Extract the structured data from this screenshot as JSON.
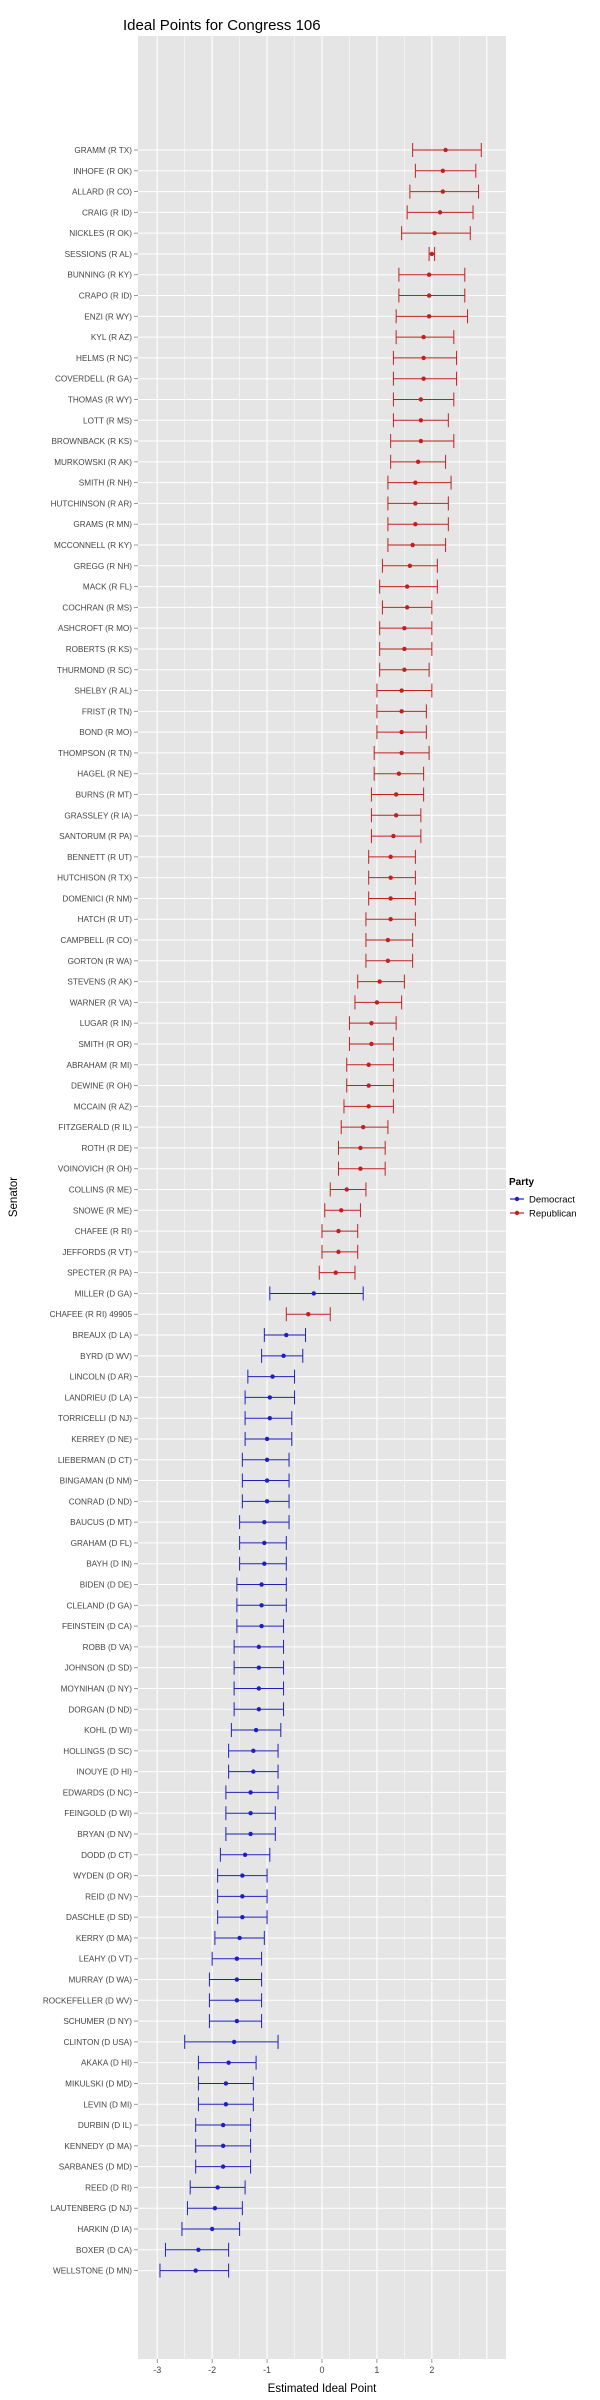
{
  "chart_data": {
    "type": "scatter",
    "title": "Ideal Points for Congress 106",
    "xlabel": "Estimated Ideal Point",
    "ylabel": "Senator",
    "xlim": [
      -3.35,
      3.35
    ],
    "xticks": [
      "-3",
      "-2",
      "-1",
      "0",
      "1",
      "2"
    ],
    "grid": true,
    "legend": {
      "title": "Party",
      "position": "right",
      "entries": [
        {
          "label": "Democract",
          "color": "#1f1fbf"
        },
        {
          "label": "Republican",
          "color": "#c12020"
        }
      ]
    },
    "points": [
      {
        "name": "GRAMM (R TX)",
        "party": "R",
        "x": 2.25,
        "lo": 1.65,
        "hi": 2.9
      },
      {
        "name": "INHOFE (R OK)",
        "party": "R",
        "x": 2.2,
        "lo": 1.7,
        "hi": 2.8
      },
      {
        "name": "ALLARD (R CO)",
        "party": "R",
        "x": 2.2,
        "lo": 1.6,
        "hi": 2.85
      },
      {
        "name": "CRAIG (R ID)",
        "party": "R",
        "x": 2.15,
        "lo": 1.55,
        "hi": 2.75
      },
      {
        "name": "NICKLES (R OK)",
        "party": "R",
        "x": 2.05,
        "lo": 1.45,
        "hi": 2.7
      },
      {
        "name": "SESSIONS (R AL)",
        "party": "R",
        "x": 2.0,
        "lo": 1.95,
        "hi": 2.05
      },
      {
        "name": "BUNNING (R KY)",
        "party": "R",
        "x": 1.95,
        "lo": 1.4,
        "hi": 2.6
      },
      {
        "name": "CRAPO (R ID)",
        "party": "R",
        "x": 1.95,
        "lo": 1.4,
        "hi": 2.6
      },
      {
        "name": "ENZI (R WY)",
        "party": "R",
        "x": 1.95,
        "lo": 1.35,
        "hi": 2.65
      },
      {
        "name": "KYL (R AZ)",
        "party": "R",
        "x": 1.85,
        "lo": 1.35,
        "hi": 2.4
      },
      {
        "name": "HELMS (R NC)",
        "party": "R",
        "x": 1.85,
        "lo": 1.3,
        "hi": 2.45
      },
      {
        "name": "COVERDELL (R GA)",
        "party": "R",
        "x": 1.85,
        "lo": 1.3,
        "hi": 2.45
      },
      {
        "name": "THOMAS (R WY)",
        "party": "R",
        "x": 1.8,
        "lo": 1.3,
        "hi": 2.4
      },
      {
        "name": "LOTT (R MS)",
        "party": "R",
        "x": 1.8,
        "lo": 1.3,
        "hi": 2.3
      },
      {
        "name": "BROWNBACK (R KS)",
        "party": "R",
        "x": 1.8,
        "lo": 1.25,
        "hi": 2.4
      },
      {
        "name": "MURKOWSKI (R AK)",
        "party": "R",
        "x": 1.75,
        "lo": 1.25,
        "hi": 2.25
      },
      {
        "name": "SMITH (R NH)",
        "party": "R",
        "x": 1.7,
        "lo": 1.2,
        "hi": 2.35
      },
      {
        "name": "HUTCHINSON (R AR)",
        "party": "R",
        "x": 1.7,
        "lo": 1.2,
        "hi": 2.3
      },
      {
        "name": "GRAMS (R MN)",
        "party": "R",
        "x": 1.7,
        "lo": 1.2,
        "hi": 2.3
      },
      {
        "name": "MCCONNELL (R KY)",
        "party": "R",
        "x": 1.65,
        "lo": 1.2,
        "hi": 2.25
      },
      {
        "name": "GREGG (R NH)",
        "party": "R",
        "x": 1.6,
        "lo": 1.1,
        "hi": 2.1
      },
      {
        "name": "MACK (R FL)",
        "party": "R",
        "x": 1.55,
        "lo": 1.05,
        "hi": 2.1
      },
      {
        "name": "COCHRAN (R MS)",
        "party": "R",
        "x": 1.55,
        "lo": 1.1,
        "hi": 2.0
      },
      {
        "name": "ASHCROFT (R MO)",
        "party": "R",
        "x": 1.5,
        "lo": 1.05,
        "hi": 2.0
      },
      {
        "name": "ROBERTS (R KS)",
        "party": "R",
        "x": 1.5,
        "lo": 1.05,
        "hi": 2.0
      },
      {
        "name": "THURMOND (R SC)",
        "party": "R",
        "x": 1.5,
        "lo": 1.05,
        "hi": 1.95
      },
      {
        "name": "SHELBY (R AL)",
        "party": "R",
        "x": 1.45,
        "lo": 1.0,
        "hi": 2.0
      },
      {
        "name": "FRIST (R TN)",
        "party": "R",
        "x": 1.45,
        "lo": 1.0,
        "hi": 1.9
      },
      {
        "name": "BOND (R MO)",
        "party": "R",
        "x": 1.45,
        "lo": 1.0,
        "hi": 1.9
      },
      {
        "name": "THOMPSON (R TN)",
        "party": "R",
        "x": 1.45,
        "lo": 0.95,
        "hi": 1.95
      },
      {
        "name": "HAGEL (R NE)",
        "party": "R",
        "x": 1.4,
        "lo": 0.95,
        "hi": 1.85
      },
      {
        "name": "BURNS (R MT)",
        "party": "R",
        "x": 1.35,
        "lo": 0.9,
        "hi": 1.85
      },
      {
        "name": "GRASSLEY (R IA)",
        "party": "R",
        "x": 1.35,
        "lo": 0.9,
        "hi": 1.8
      },
      {
        "name": "SANTORUM (R PA)",
        "party": "R",
        "x": 1.3,
        "lo": 0.9,
        "hi": 1.8
      },
      {
        "name": "BENNETT (R UT)",
        "party": "R",
        "x": 1.25,
        "lo": 0.85,
        "hi": 1.7
      },
      {
        "name": "HUTCHISON (R TX)",
        "party": "R",
        "x": 1.25,
        "lo": 0.85,
        "hi": 1.7
      },
      {
        "name": "DOMENICI (R NM)",
        "party": "R",
        "x": 1.25,
        "lo": 0.85,
        "hi": 1.7
      },
      {
        "name": "HATCH (R UT)",
        "party": "R",
        "x": 1.25,
        "lo": 0.8,
        "hi": 1.7
      },
      {
        "name": "CAMPBELL (R CO)",
        "party": "R",
        "x": 1.2,
        "lo": 0.8,
        "hi": 1.65
      },
      {
        "name": "GORTON (R WA)",
        "party": "R",
        "x": 1.2,
        "lo": 0.8,
        "hi": 1.65
      },
      {
        "name": "STEVENS (R AK)",
        "party": "R",
        "x": 1.05,
        "lo": 0.65,
        "hi": 1.5
      },
      {
        "name": "WARNER (R VA)",
        "party": "R",
        "x": 1.0,
        "lo": 0.6,
        "hi": 1.45
      },
      {
        "name": "LUGAR (R IN)",
        "party": "R",
        "x": 0.9,
        "lo": 0.5,
        "hi": 1.35
      },
      {
        "name": "SMITH (R OR)",
        "party": "R",
        "x": 0.9,
        "lo": 0.5,
        "hi": 1.3
      },
      {
        "name": "ABRAHAM (R MI)",
        "party": "R",
        "x": 0.85,
        "lo": 0.45,
        "hi": 1.3
      },
      {
        "name": "DEWINE (R OH)",
        "party": "R",
        "x": 0.85,
        "lo": 0.45,
        "hi": 1.3
      },
      {
        "name": "MCCAIN (R AZ)",
        "party": "R",
        "x": 0.85,
        "lo": 0.4,
        "hi": 1.3
      },
      {
        "name": "FITZGERALD (R IL)",
        "party": "R",
        "x": 0.75,
        "lo": 0.35,
        "hi": 1.2
      },
      {
        "name": "ROTH (R DE)",
        "party": "R",
        "x": 0.7,
        "lo": 0.3,
        "hi": 1.15
      },
      {
        "name": "VOINOVICH (R OH)",
        "party": "R",
        "x": 0.7,
        "lo": 0.3,
        "hi": 1.15
      },
      {
        "name": "COLLINS (R ME)",
        "party": "R",
        "x": 0.45,
        "lo": 0.15,
        "hi": 0.8
      },
      {
        "name": "SNOWE (R ME)",
        "party": "R",
        "x": 0.35,
        "lo": 0.05,
        "hi": 0.7
      },
      {
        "name": "CHAFEE (R RI)",
        "party": "R",
        "x": 0.3,
        "lo": 0.0,
        "hi": 0.65
      },
      {
        "name": "JEFFORDS (R VT)",
        "party": "R",
        "x": 0.3,
        "lo": 0.0,
        "hi": 0.65
      },
      {
        "name": "SPECTER (R PA)",
        "party": "R",
        "x": 0.25,
        "lo": -0.05,
        "hi": 0.6
      },
      {
        "name": "MILLER (D GA)",
        "party": "D",
        "x": -0.15,
        "lo": -0.95,
        "hi": 0.75
      },
      {
        "name": "CHAFEE (R RI) 49905",
        "party": "R",
        "x": -0.25,
        "lo": -0.65,
        "hi": 0.15
      },
      {
        "name": "BREAUX (D LA)",
        "party": "D",
        "x": -0.65,
        "lo": -1.05,
        "hi": -0.3
      },
      {
        "name": "BYRD (D WV)",
        "party": "D",
        "x": -0.7,
        "lo": -1.1,
        "hi": -0.35
      },
      {
        "name": "LINCOLN (D AR)",
        "party": "D",
        "x": -0.9,
        "lo": -1.35,
        "hi": -0.5
      },
      {
        "name": "LANDRIEU (D LA)",
        "party": "D",
        "x": -0.95,
        "lo": -1.4,
        "hi": -0.5
      },
      {
        "name": "TORRICELLI (D NJ)",
        "party": "D",
        "x": -0.95,
        "lo": -1.4,
        "hi": -0.55
      },
      {
        "name": "KERREY (D NE)",
        "party": "D",
        "x": -1.0,
        "lo": -1.4,
        "hi": -0.55
      },
      {
        "name": "LIEBERMAN (D CT)",
        "party": "D",
        "x": -1.0,
        "lo": -1.45,
        "hi": -0.6
      },
      {
        "name": "BINGAMAN (D NM)",
        "party": "D",
        "x": -1.0,
        "lo": -1.45,
        "hi": -0.6
      },
      {
        "name": "CONRAD (D ND)",
        "party": "D",
        "x": -1.0,
        "lo": -1.45,
        "hi": -0.6
      },
      {
        "name": "BAUCUS (D MT)",
        "party": "D",
        "x": -1.05,
        "lo": -1.5,
        "hi": -0.6
      },
      {
        "name": "GRAHAM (D FL)",
        "party": "D",
        "x": -1.05,
        "lo": -1.5,
        "hi": -0.65
      },
      {
        "name": "BAYH (D IN)",
        "party": "D",
        "x": -1.05,
        "lo": -1.5,
        "hi": -0.65
      },
      {
        "name": "BIDEN (D DE)",
        "party": "D",
        "x": -1.1,
        "lo": -1.55,
        "hi": -0.65
      },
      {
        "name": "CLELAND (D GA)",
        "party": "D",
        "x": -1.1,
        "lo": -1.55,
        "hi": -0.65
      },
      {
        "name": "FEINSTEIN (D CA)",
        "party": "D",
        "x": -1.1,
        "lo": -1.55,
        "hi": -0.7
      },
      {
        "name": "ROBB (D VA)",
        "party": "D",
        "x": -1.15,
        "lo": -1.6,
        "hi": -0.7
      },
      {
        "name": "JOHNSON (D SD)",
        "party": "D",
        "x": -1.15,
        "lo": -1.6,
        "hi": -0.7
      },
      {
        "name": "MOYNIHAN (D NY)",
        "party": "D",
        "x": -1.15,
        "lo": -1.6,
        "hi": -0.7
      },
      {
        "name": "DORGAN (D ND)",
        "party": "D",
        "x": -1.15,
        "lo": -1.6,
        "hi": -0.7
      },
      {
        "name": "KOHL (D WI)",
        "party": "D",
        "x": -1.2,
        "lo": -1.65,
        "hi": -0.75
      },
      {
        "name": "HOLLINGS (D SC)",
        "party": "D",
        "x": -1.25,
        "lo": -1.7,
        "hi": -0.8
      },
      {
        "name": "INOUYE (D HI)",
        "party": "D",
        "x": -1.25,
        "lo": -1.7,
        "hi": -0.8
      },
      {
        "name": "EDWARDS (D NC)",
        "party": "D",
        "x": -1.3,
        "lo": -1.75,
        "hi": -0.8
      },
      {
        "name": "FEINGOLD (D WI)",
        "party": "D",
        "x": -1.3,
        "lo": -1.75,
        "hi": -0.85
      },
      {
        "name": "BRYAN (D NV)",
        "party": "D",
        "x": -1.3,
        "lo": -1.75,
        "hi": -0.85
      },
      {
        "name": "DODD (D CT)",
        "party": "D",
        "x": -1.4,
        "lo": -1.85,
        "hi": -0.95
      },
      {
        "name": "WYDEN (D OR)",
        "party": "D",
        "x": -1.45,
        "lo": -1.9,
        "hi": -1.0
      },
      {
        "name": "REID (D NV)",
        "party": "D",
        "x": -1.45,
        "lo": -1.9,
        "hi": -1.0
      },
      {
        "name": "DASCHLE (D SD)",
        "party": "D",
        "x": -1.45,
        "lo": -1.9,
        "hi": -1.0
      },
      {
        "name": "KERRY (D MA)",
        "party": "D",
        "x": -1.5,
        "lo": -1.95,
        "hi": -1.05
      },
      {
        "name": "LEAHY (D VT)",
        "party": "D",
        "x": -1.55,
        "lo": -2.0,
        "hi": -1.1
      },
      {
        "name": "MURRAY (D WA)",
        "party": "D",
        "x": -1.55,
        "lo": -2.05,
        "hi": -1.1
      },
      {
        "name": "ROCKEFELLER (D WV)",
        "party": "D",
        "x": -1.55,
        "lo": -2.05,
        "hi": -1.1
      },
      {
        "name": "SCHUMER (D NY)",
        "party": "D",
        "x": -1.55,
        "lo": -2.05,
        "hi": -1.1
      },
      {
        "name": "CLINTON (D USA)",
        "party": "D",
        "x": -1.6,
        "lo": -2.5,
        "hi": -0.8
      },
      {
        "name": "AKAKA (D HI)",
        "party": "D",
        "x": -1.7,
        "lo": -2.25,
        "hi": -1.2
      },
      {
        "name": "MIKULSKI (D MD)",
        "party": "D",
        "x": -1.75,
        "lo": -2.25,
        "hi": -1.25
      },
      {
        "name": "LEVIN (D MI)",
        "party": "D",
        "x": -1.75,
        "lo": -2.25,
        "hi": -1.25
      },
      {
        "name": "DURBIN (D IL)",
        "party": "D",
        "x": -1.8,
        "lo": -2.3,
        "hi": -1.3
      },
      {
        "name": "KENNEDY (D MA)",
        "party": "D",
        "x": -1.8,
        "lo": -2.3,
        "hi": -1.3
      },
      {
        "name": "SARBANES (D MD)",
        "party": "D",
        "x": -1.8,
        "lo": -2.3,
        "hi": -1.3
      },
      {
        "name": "REED (D RI)",
        "party": "D",
        "x": -1.9,
        "lo": -2.4,
        "hi": -1.4
      },
      {
        "name": "LAUTENBERG (D NJ)",
        "party": "D",
        "x": -1.95,
        "lo": -2.45,
        "hi": -1.45
      },
      {
        "name": "HARKIN (D IA)",
        "party": "D",
        "x": -2.0,
        "lo": -2.55,
        "hi": -1.5
      },
      {
        "name": "BOXER (D CA)",
        "party": "D",
        "x": -2.25,
        "lo": -2.85,
        "hi": -1.7
      },
      {
        "name": "WELLSTONE (D MN)",
        "party": "D",
        "x": -2.3,
        "lo": -2.95,
        "hi": -1.7
      }
    ]
  }
}
